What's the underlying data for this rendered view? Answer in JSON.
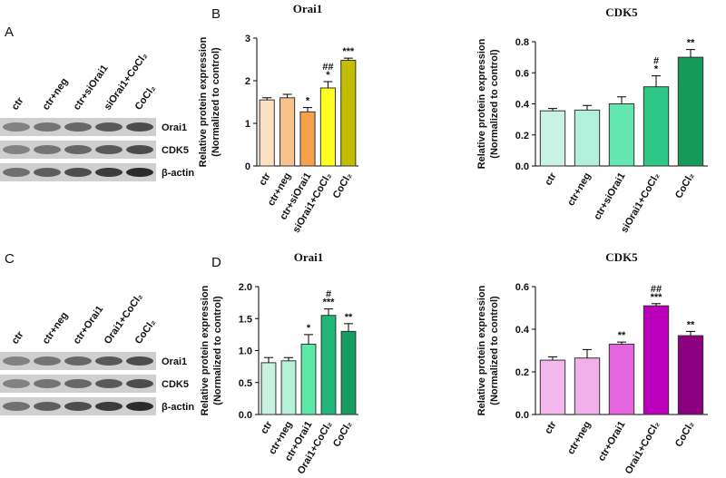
{
  "blots": [
    {
      "letter": "A",
      "lanes": [
        "ctr",
        "ctr+neg",
        "ctr+siOrai1",
        "siOrai1+CoCl₂",
        "CoCl₂"
      ],
      "rows": [
        "Orai1",
        "CDK5",
        "β-actin"
      ]
    },
    {
      "letter": "C",
      "lanes": [
        "ctr",
        "ctr+neg",
        "ctr+Orai1",
        "Orai1+CoCl₂",
        "CoCl₂"
      ],
      "rows": [
        "Orai1",
        "CDK5",
        "β-actin"
      ]
    }
  ],
  "chart_data": [
    {
      "type": "bar",
      "panel": "B",
      "title": "Orai1",
      "ylabel": [
        "Relative protein expression",
        "(Normalized to control)"
      ],
      "categories": [
        "ctr",
        "ctr+neg",
        "ctr+siOrai1",
        "siOrai1+CoCl₂",
        "CoCl₂"
      ],
      "values": [
        1.55,
        1.6,
        1.27,
        1.83,
        2.48
      ],
      "errors": [
        0.05,
        0.08,
        0.1,
        0.15,
        0.05
      ],
      "annotations": [
        [],
        [],
        [
          "*"
        ],
        [
          "##",
          "*"
        ],
        [
          "***"
        ]
      ],
      "colors": [
        "#fde0c0",
        "#f9c18b",
        "#f5a04a",
        "#ffff20",
        "#c2bd00"
      ],
      "ylim": [
        0,
        3
      ],
      "yticks": [
        0,
        1,
        2,
        3
      ]
    },
    {
      "type": "bar",
      "title": "CDK5",
      "ylabel": [
        "Relative protein expression",
        "(Normalized to control)"
      ],
      "categories": [
        "ctr",
        "ctr+neg",
        "ctr+siOrai1",
        "siOrai1+CoCl₂",
        "CoCl₂"
      ],
      "values": [
        0.355,
        0.36,
        0.4,
        0.51,
        0.7
      ],
      "errors": [
        0.015,
        0.03,
        0.045,
        0.07,
        0.05
      ],
      "annotations": [
        [],
        [],
        [],
        [
          "#",
          "*"
        ],
        [
          "**"
        ]
      ],
      "colors": [
        "#c8f2e4",
        "#b3f0dc",
        "#63e6b0",
        "#2ec786",
        "#159a5a"
      ],
      "ylim": [
        0,
        0.8
      ],
      "yticks": [
        {
          "value": 0,
          "label": "0.0"
        },
        0.2,
        0.4,
        0.6,
        0.8
      ]
    },
    {
      "type": "bar",
      "panel": "D",
      "title": "Orai1",
      "ylabel": [
        "Relative protein expression",
        "(Normalized to control)"
      ],
      "categories": [
        "ctr",
        "ctr+neg",
        "ctr+Orai1",
        "Orai1+CoCl₂",
        "CoCl₂"
      ],
      "values": [
        0.81,
        0.84,
        1.1,
        1.55,
        1.3
      ],
      "errors": [
        0.08,
        0.05,
        0.15,
        0.1,
        0.12
      ],
      "annotations": [
        [],
        [],
        [
          "*"
        ],
        [
          "#",
          "***"
        ],
        [
          "**"
        ]
      ],
      "colors": [
        "#c8f0e0",
        "#b6f0d8",
        "#5ce8a8",
        "#21b77a",
        "#169e62"
      ],
      "ylim": [
        0,
        2
      ],
      "yticks": [
        {
          "value": 0,
          "label": "0.0"
        },
        0.5,
        {
          "value": 1,
          "label": "1.0"
        },
        1.5,
        {
          "value": 2,
          "label": "2.0"
        }
      ]
    },
    {
      "type": "bar",
      "title": "CDK5",
      "ylabel": [
        "Relative protein expression",
        "(Normalized to control)"
      ],
      "categories": [
        "ctr",
        "ctr+neg",
        "ctr+Orai1",
        "Orai1+CoCl₂",
        "CoCl₂"
      ],
      "values": [
        0.255,
        0.265,
        0.33,
        0.51,
        0.37
      ],
      "errors": [
        0.015,
        0.04,
        0.01,
        0.01,
        0.02
      ],
      "annotations": [
        [],
        [],
        [
          "**"
        ],
        [
          "##",
          "***"
        ],
        [
          "**"
        ]
      ],
      "colors": [
        "#f3b8ee",
        "#f0b0ea",
        "#e666e0",
        "#bb00bb",
        "#8a0080"
      ],
      "ylim": [
        0,
        0.6
      ],
      "yticks": [
        {
          "value": 0,
          "label": "0.0"
        },
        0.2,
        0.4,
        0.6
      ]
    }
  ]
}
